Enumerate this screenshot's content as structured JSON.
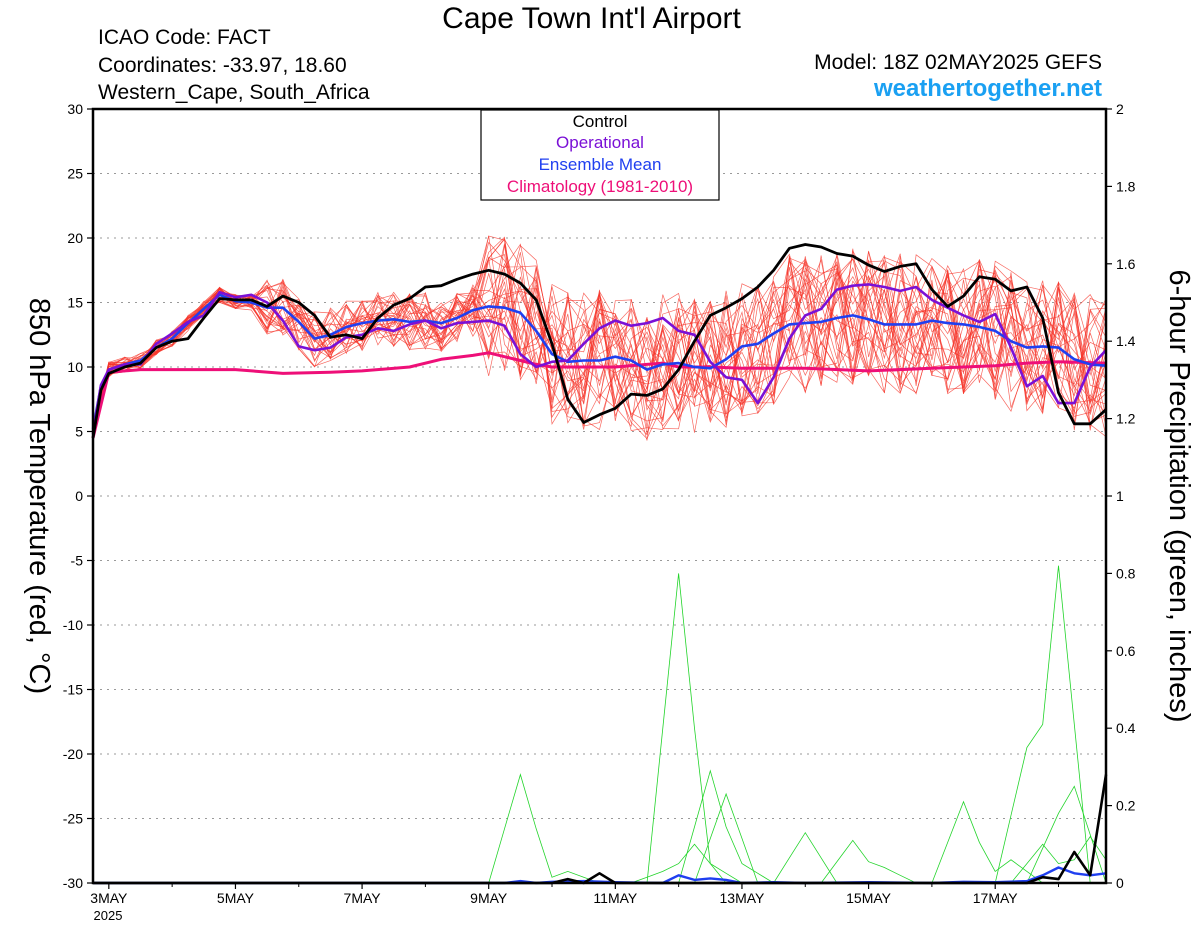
{
  "header": {
    "title": "Cape Town Int'l Airport",
    "icao": "ICAO Code: FACT",
    "coordinates": "Coordinates: -33.97, 18.60",
    "region": "Western_Cape, South_Africa",
    "model": "Model: 18Z 02MAY2025 GEFS",
    "website": "weathertogether.net"
  },
  "chart_data": {
    "type": "line",
    "left_axis": {
      "label": "850 hPa Temperature (red, °C)",
      "min": -30,
      "max": 30,
      "ticks": [
        30,
        25,
        20,
        15,
        10,
        5,
        0,
        -5,
        -10,
        -15,
        -20,
        -25,
        -30
      ]
    },
    "right_axis": {
      "label": "6-hour Precipitation (green, inches)",
      "min": 0,
      "max": 2,
      "ticks": [
        "2",
        "1.8",
        "1.6",
        "1.4",
        "1.2",
        "1",
        "0.8",
        "0.6",
        "0.4",
        "0.2",
        "0"
      ]
    },
    "x_axis": {
      "start_day": 2.75,
      "end_day": 18.75,
      "tick_days": [
        3,
        5,
        7,
        9,
        11,
        13,
        15,
        17
      ],
      "tick_labels": [
        "3MAY",
        "5MAY",
        "7MAY",
        "9MAY",
        "11MAY",
        "13MAY",
        "15MAY",
        "17MAY"
      ],
      "year_label": "2025"
    },
    "legend": [
      "Control",
      "Operational",
      "Ensemble Mean",
      "Climatology (1981-2010)"
    ],
    "legend_position": "top-center",
    "grid": true,
    "colors": {
      "control": "#000000",
      "operational": "#7a10d6",
      "ensemble_mean": "#1f3ff0",
      "climatology": "#ee0f78",
      "members": "#f5342a",
      "precip": "#22d42a",
      "website": "#1aa0f2"
    },
    "series": [
      {
        "name": "Control",
        "axis": "temp",
        "x": [
          2.75,
          2.875,
          3.0,
          3.25,
          3.5,
          3.75,
          4.0,
          4.25,
          4.5,
          4.75,
          5.0,
          5.25,
          5.5,
          5.75,
          6.0,
          6.25,
          6.5,
          6.75,
          7.0,
          7.25,
          7.5,
          7.75,
          8.0,
          8.25,
          8.5,
          8.75,
          9.0,
          9.25,
          9.5,
          9.75,
          10.0,
          10.25,
          10.5,
          10.75,
          11.0,
          11.25,
          11.5,
          11.75,
          12.0,
          12.25,
          12.5,
          12.75,
          13.0,
          13.25,
          13.5,
          13.75,
          14.0,
          14.25,
          14.5,
          14.75,
          15.0,
          15.25,
          15.5,
          15.75,
          16.0,
          16.25,
          16.5,
          16.75,
          17.0,
          17.25,
          17.5,
          17.75,
          18.0,
          18.25,
          18.5,
          18.75
        ],
        "y": [
          4.5,
          8.2,
          9.5,
          10.0,
          10.3,
          11.5,
          12.0,
          12.2,
          13.8,
          15.3,
          15.2,
          15.2,
          14.7,
          15.5,
          15.0,
          14.0,
          12.3,
          12.5,
          12.2,
          13.8,
          14.8,
          15.3,
          16.2,
          16.3,
          16.8,
          17.2,
          17.5,
          17.2,
          16.5,
          15.2,
          11.8,
          7.5,
          5.7,
          6.3,
          6.8,
          7.9,
          7.8,
          8.3,
          9.8,
          12.0,
          14.0,
          14.6,
          15.3,
          16.2,
          17.5,
          19.2,
          19.5,
          19.3,
          18.8,
          18.6,
          17.9,
          17.4,
          17.8,
          18.0,
          16.0,
          14.7,
          15.5,
          17.0,
          16.8,
          15.9,
          16.2,
          13.8,
          8.0,
          5.6,
          5.6,
          6.7
        ]
      },
      {
        "name": "Operational",
        "axis": "temp",
        "x": [
          2.75,
          2.875,
          3.0,
          3.25,
          3.5,
          3.75,
          4.0,
          4.25,
          4.5,
          4.75,
          5.0,
          5.25,
          5.5,
          5.75,
          6.0,
          6.25,
          6.5,
          6.75,
          7.0,
          7.25,
          7.5,
          7.75,
          8.0,
          8.25,
          8.5,
          8.75,
          9.0,
          9.25,
          9.5,
          9.75,
          10.0,
          10.25,
          10.5,
          10.75,
          11.0,
          11.25,
          11.5,
          11.75,
          12.0,
          12.25,
          12.5,
          12.75,
          13.0,
          13.25,
          13.5,
          13.75,
          14.0,
          14.25,
          14.5,
          14.75,
          15.0,
          15.25,
          15.5,
          15.75,
          16.0,
          16.25,
          16.5,
          16.75,
          17.0,
          17.25,
          17.5,
          17.75,
          18.0,
          18.25,
          18.5,
          18.75
        ],
        "y": [
          4.8,
          8.6,
          9.8,
          10.2,
          10.2,
          11.8,
          12.6,
          13.5,
          14.0,
          15.8,
          15.4,
          15.6,
          15.0,
          13.6,
          11.6,
          11.3,
          11.5,
          12.3,
          12.5,
          13.0,
          12.8,
          13.3,
          13.6,
          13.0,
          13.4,
          13.5,
          13.6,
          13.2,
          11.0,
          10.0,
          10.4,
          10.5,
          11.8,
          13.0,
          13.6,
          13.2,
          13.4,
          13.8,
          12.8,
          12.5,
          10.4,
          9.2,
          9.0,
          7.2,
          9.2,
          12.2,
          14.0,
          14.5,
          16.0,
          16.3,
          16.4,
          16.2,
          15.9,
          16.2,
          15.2,
          14.6,
          14.0,
          13.5,
          14.1,
          11.5,
          8.5,
          9.3,
          7.2,
          7.2,
          10.0,
          11.3
        ]
      },
      {
        "name": "Ensemble Mean",
        "axis": "temp",
        "x": [
          2.75,
          2.875,
          3.0,
          3.25,
          3.5,
          3.75,
          4.0,
          4.25,
          4.5,
          4.75,
          5.0,
          5.25,
          5.5,
          5.75,
          6.0,
          6.25,
          6.5,
          6.75,
          7.0,
          7.25,
          7.5,
          7.75,
          8.0,
          8.25,
          8.5,
          8.75,
          9.0,
          9.25,
          9.5,
          9.75,
          10.0,
          10.25,
          10.5,
          10.75,
          11.0,
          11.25,
          11.5,
          11.75,
          12.0,
          12.25,
          12.5,
          12.75,
          13.0,
          13.25,
          13.5,
          13.75,
          14.0,
          14.25,
          14.5,
          14.75,
          15.0,
          15.25,
          15.5,
          15.75,
          16.0,
          16.25,
          16.5,
          16.75,
          17.0,
          17.25,
          17.5,
          17.75,
          18.0,
          18.25,
          18.5,
          18.75
        ],
        "y": [
          5.2,
          8.5,
          9.8,
          10.2,
          10.5,
          11.5,
          12.2,
          13.4,
          14.5,
          15.6,
          15.1,
          15.0,
          14.6,
          14.6,
          13.5,
          12.2,
          12.5,
          13.1,
          13.4,
          13.6,
          13.7,
          13.5,
          13.6,
          13.4,
          13.8,
          14.4,
          14.7,
          14.6,
          14.2,
          12.8,
          11.0,
          10.4,
          10.5,
          10.5,
          10.8,
          10.5,
          9.8,
          10.2,
          10.3,
          10.0,
          9.9,
          10.6,
          11.6,
          11.8,
          12.6,
          13.3,
          13.4,
          13.5,
          13.8,
          14.0,
          13.7,
          13.3,
          13.3,
          13.3,
          13.6,
          13.4,
          13.3,
          13.1,
          12.8,
          12.0,
          11.5,
          11.6,
          11.5,
          10.6,
          10.2,
          10.1
        ]
      },
      {
        "name": "Climatology (1981-2010)",
        "axis": "temp",
        "x": [
          2.75,
          3.0,
          3.5,
          4.0,
          5.0,
          5.75,
          6.5,
          7.0,
          7.75,
          8.25,
          8.75,
          9.0,
          9.25,
          9.5,
          9.75,
          10.0,
          10.5,
          11.0,
          11.5,
          11.75,
          12.0,
          12.5,
          13.0,
          13.5,
          14.0,
          15.0,
          16.0,
          17.0,
          17.5,
          18.0,
          18.75
        ],
        "y": [
          4.5,
          9.6,
          9.8,
          9.8,
          9.8,
          9.5,
          9.6,
          9.7,
          10.0,
          10.6,
          10.9,
          11.1,
          10.8,
          10.5,
          10.2,
          10.0,
          10.0,
          10.0,
          10.2,
          10.3,
          10.0,
          10.0,
          9.9,
          9.9,
          9.9,
          9.7,
          9.9,
          10.1,
          10.3,
          10.4,
          10.3
        ]
      },
      {
        "name": "Control precipitation",
        "axis": "precip",
        "x": [
          2.75,
          9.75,
          10.0,
          10.25,
          10.5,
          10.75,
          11.0,
          15.0,
          17.5,
          17.75,
          18.0,
          18.25,
          18.5,
          18.75
        ],
        "y": [
          0.0,
          0.0,
          0.0,
          0.01,
          0.0,
          0.025,
          0.0,
          0.0,
          0.0,
          0.015,
          0.01,
          0.08,
          0.02,
          0.28
        ]
      },
      {
        "name": "Ensemble Mean precipitation",
        "axis": "precip",
        "x": [
          2.75,
          9.25,
          9.5,
          9.75,
          10.0,
          10.5,
          11.0,
          11.75,
          12.0,
          12.25,
          12.5,
          12.75,
          13.0,
          13.5,
          14.0,
          15.0,
          16.0,
          16.5,
          17.0,
          17.5,
          17.75,
          18.0,
          18.25,
          18.5,
          18.75
        ],
        "y": [
          0.0,
          0.0,
          0.005,
          0.0,
          0.003,
          0.005,
          0.002,
          0.0,
          0.02,
          0.008,
          0.012,
          0.008,
          0.0,
          0.002,
          0.0,
          0.002,
          0.0,
          0.003,
          0.002,
          0.005,
          0.02,
          0.04,
          0.025,
          0.02,
          0.025
        ]
      }
    ]
  }
}
